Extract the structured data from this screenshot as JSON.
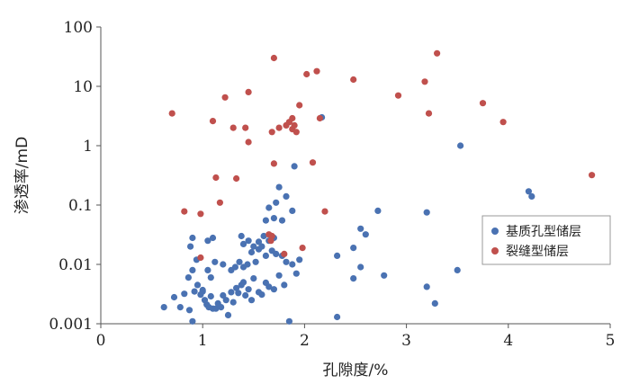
{
  "chart_data": {
    "type": "scatter",
    "xlabel": "孔隙度/%",
    "ylabel": "渗透率/mD",
    "xlim": [
      0,
      5
    ],
    "ylim": [
      0.001,
      100
    ],
    "yscale": "log",
    "x_ticks": [
      "0",
      "1",
      "2",
      "3",
      "4",
      "5"
    ],
    "y_ticks": [
      "0.001",
      "0.01",
      "0.1",
      "1",
      "10",
      "100"
    ],
    "grid": false,
    "legend_position": "right",
    "series": [
      {
        "name": "基质孔型储层",
        "color": "#4a72b2",
        "points": [
          [
            0.62,
            0.0019
          ],
          [
            0.72,
            0.0028
          ],
          [
            0.78,
            0.0019
          ],
          [
            0.82,
            0.0032
          ],
          [
            0.87,
            0.0017
          ],
          [
            0.9,
            0.0011
          ],
          [
            0.92,
            0.0035
          ],
          [
            0.95,
            0.0045
          ],
          [
            0.98,
            0.0031
          ],
          [
            1.0,
            0.0037
          ],
          [
            1.02,
            0.0025
          ],
          [
            1.04,
            0.0021
          ],
          [
            1.06,
            0.0019
          ],
          [
            1.08,
            0.0029
          ],
          [
            1.1,
            0.0018
          ],
          [
            1.13,
            0.0018
          ],
          [
            1.15,
            0.0022
          ],
          [
            1.18,
            0.0019
          ],
          [
            1.2,
            0.003
          ],
          [
            1.23,
            0.0025
          ],
          [
            1.25,
            0.0014
          ],
          [
            1.28,
            0.0034
          ],
          [
            1.3,
            0.0023
          ],
          [
            1.33,
            0.004
          ],
          [
            1.35,
            0.0033
          ],
          [
            1.38,
            0.0045
          ],
          [
            1.4,
            0.005
          ],
          [
            1.42,
            0.003
          ],
          [
            1.45,
            0.0038
          ],
          [
            1.48,
            0.0025
          ],
          [
            1.5,
            0.0058
          ],
          [
            1.55,
            0.0034
          ],
          [
            1.58,
            0.0031
          ],
          [
            1.62,
            0.0049
          ],
          [
            1.65,
            0.0042
          ],
          [
            1.7,
            0.0038
          ],
          [
            1.75,
            0.0065
          ],
          [
            1.8,
            0.0045
          ],
          [
            1.85,
            0.0011
          ],
          [
            1.92,
            0.007
          ],
          [
            0.86,
            0.006
          ],
          [
            0.9,
            0.008
          ],
          [
            0.94,
            0.012
          ],
          [
            0.88,
            0.02
          ],
          [
            1.05,
            0.008
          ],
          [
            1.08,
            0.006
          ],
          [
            1.12,
            0.011
          ],
          [
            1.2,
            0.01
          ],
          [
            1.28,
            0.008
          ],
          [
            1.32,
            0.009
          ],
          [
            1.36,
            0.011
          ],
          [
            1.4,
            0.009
          ],
          [
            1.44,
            0.01
          ],
          [
            1.48,
            0.016
          ],
          [
            1.52,
            0.011
          ],
          [
            1.55,
            0.018
          ],
          [
            1.58,
            0.02
          ],
          [
            1.62,
            0.014
          ],
          [
            1.68,
            0.017
          ],
          [
            1.72,
            0.015
          ],
          [
            1.78,
            0.014
          ],
          [
            1.82,
            0.011
          ],
          [
            1.88,
            0.01
          ],
          [
            1.95,
            0.012
          ],
          [
            1.0,
            0.0035
          ],
          [
            1.05,
            0.025
          ],
          [
            1.1,
            0.028
          ],
          [
            0.9,
            0.028
          ],
          [
            1.38,
            0.03
          ],
          [
            1.4,
            0.022
          ],
          [
            1.45,
            0.025
          ],
          [
            1.5,
            0.02
          ],
          [
            1.55,
            0.024
          ],
          [
            1.6,
            0.03
          ],
          [
            1.65,
            0.025
          ],
          [
            1.7,
            0.028
          ],
          [
            1.62,
            0.055
          ],
          [
            1.65,
            0.09
          ],
          [
            1.7,
            0.06
          ],
          [
            1.72,
            0.11
          ],
          [
            1.75,
            0.2
          ],
          [
            1.78,
            0.055
          ],
          [
            1.82,
            0.14
          ],
          [
            1.88,
            0.08
          ],
          [
            1.9,
            0.45
          ],
          [
            2.17,
            3.0
          ],
          [
            2.32,
            0.014
          ],
          [
            2.32,
            0.0013
          ],
          [
            2.48,
            0.019
          ],
          [
            2.48,
            0.0058
          ],
          [
            2.55,
            0.009
          ],
          [
            2.55,
            0.04
          ],
          [
            2.6,
            0.032
          ],
          [
            2.72,
            0.08
          ],
          [
            2.78,
            0.0065
          ],
          [
            3.2,
            0.075
          ],
          [
            3.2,
            0.0042
          ],
          [
            3.28,
            0.0022
          ],
          [
            3.5,
            0.008
          ],
          [
            3.53,
            1.0
          ],
          [
            4.2,
            0.17
          ],
          [
            4.23,
            0.14
          ]
        ]
      },
      {
        "name": "裂缝型储层",
        "color": "#c0504d",
        "points": [
          [
            0.7,
            3.5
          ],
          [
            0.82,
            0.078
          ],
          [
            0.98,
            0.071
          ],
          [
            0.98,
            0.013
          ],
          [
            1.1,
            2.6
          ],
          [
            1.13,
            0.29
          ],
          [
            1.17,
            0.11
          ],
          [
            1.22,
            6.5
          ],
          [
            1.3,
            2.0
          ],
          [
            1.33,
            0.28
          ],
          [
            1.42,
            2.0
          ],
          [
            1.45,
            1.15
          ],
          [
            1.45,
            8.0
          ],
          [
            1.65,
            0.032
          ],
          [
            1.67,
            0.025
          ],
          [
            1.68,
            0.03
          ],
          [
            1.68,
            1.7
          ],
          [
            1.7,
            30.0
          ],
          [
            1.7,
            0.5
          ],
          [
            1.75,
            2.0
          ],
          [
            1.8,
            0.015
          ],
          [
            1.82,
            2.2
          ],
          [
            1.85,
            2.5
          ],
          [
            1.88,
            1.9
          ],
          [
            1.88,
            2.9
          ],
          [
            1.9,
            2.2
          ],
          [
            1.92,
            1.7
          ],
          [
            1.95,
            4.8
          ],
          [
            1.98,
            0.019
          ],
          [
            2.02,
            16.0
          ],
          [
            2.08,
            0.52
          ],
          [
            2.12,
            18.0
          ],
          [
            2.15,
            2.9
          ],
          [
            2.2,
            0.078
          ],
          [
            2.48,
            13.0
          ],
          [
            2.92,
            7.0
          ],
          [
            3.18,
            12.0
          ],
          [
            3.22,
            3.5
          ],
          [
            3.3,
            36.0
          ],
          [
            3.75,
            5.2
          ],
          [
            3.95,
            2.5
          ],
          [
            4.82,
            0.32
          ]
        ]
      }
    ]
  }
}
